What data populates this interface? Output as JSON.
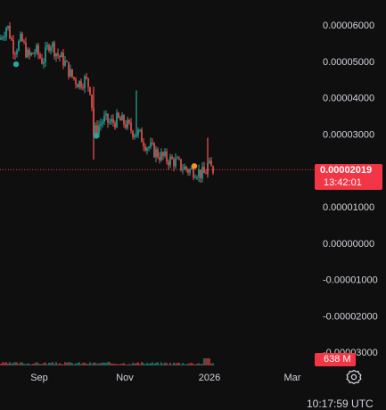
{
  "chart_data": {
    "type": "candlestick",
    "x_ticks": [
      "Sep",
      "Nov",
      "2026",
      "Mar"
    ],
    "y_ticks": [
      "0.00006000",
      "0.00005000",
      "0.00004000",
      "0.00003000",
      "0.00001000",
      "0.00000000",
      "-0.00001000",
      "-0.00002000",
      "-0.00003000"
    ],
    "ylim": [
      -3.1e-05,
      6.4e-05
    ],
    "last_price": "0.00002019",
    "last_price_value": 2.019e-05,
    "countdown": "13:42:01",
    "volume_label": "638 M",
    "up_color": "#26a69a",
    "down_color": "#ef5350",
    "price_tag_color": "#f23645",
    "trend_points": [
      [
        0,
        5.6e-05
      ],
      [
        8,
        6e-05
      ],
      [
        16,
        5.3e-05
      ],
      [
        24,
        5.6e-05
      ],
      [
        32,
        5.1e-05
      ],
      [
        40,
        5.3e-05
      ],
      [
        48,
        5e-05
      ],
      [
        56,
        5.55e-05
      ],
      [
        64,
        5.2e-05
      ],
      [
        72,
        5e-05
      ],
      [
        80,
        4.6e-05
      ],
      [
        88,
        4.4e-05
      ],
      [
        96,
        4.5e-05
      ],
      [
        102,
        4.2e-05
      ],
      [
        105,
        3e-05
      ],
      [
        110,
        3.2e-05
      ],
      [
        116,
        3.4e-05
      ],
      [
        124,
        3.3e-05
      ],
      [
        132,
        3.4e-05
      ],
      [
        140,
        3.3e-05
      ],
      [
        148,
        3.1e-05
      ],
      [
        156,
        3e-05
      ],
      [
        164,
        2.7e-05
      ],
      [
        172,
        2.55e-05
      ],
      [
        180,
        2.4e-05
      ],
      [
        188,
        2.3e-05
      ],
      [
        196,
        2.25e-05
      ],
      [
        204,
        2.1e-05
      ],
      [
        212,
        2e-05
      ],
      [
        220,
        2e-05
      ],
      [
        226,
        1.9e-05
      ],
      [
        230,
        1.9e-05
      ],
      [
        233,
        2.15e-05
      ],
      [
        236,
        2.05e-05
      ],
      [
        240,
        2.02e-05
      ]
    ],
    "spikes": [
      {
        "x": 105,
        "high": 4.3e-05,
        "low": 2.3e-05
      },
      {
        "x": 153,
        "high": 4.2e-05,
        "low": 2.9e-05
      },
      {
        "x": 233,
        "high": 2.9e-05,
        "low": 1.8e-05
      }
    ],
    "markers": [
      {
        "x": 18,
        "y": 4.92e-05,
        "color": "#26a69a"
      },
      {
        "x": 108,
        "y": 2.95e-05,
        "color": "#26a69a"
      },
      {
        "x": 218,
        "y": 2.12e-05,
        "color": "#f7931a"
      }
    ]
  },
  "footer": {
    "time": "10:17:59 UTC"
  }
}
